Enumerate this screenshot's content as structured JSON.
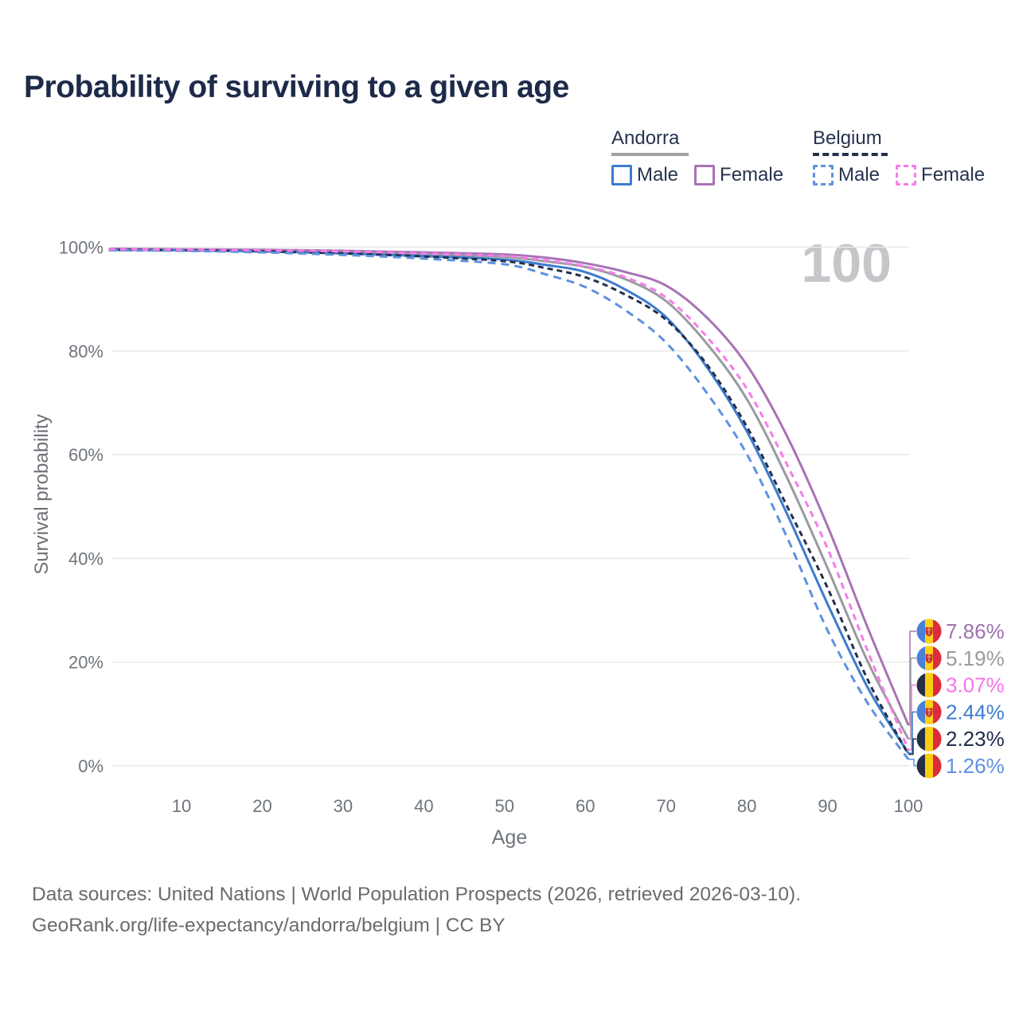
{
  "title": "Probability of surviving to a given age",
  "watermark": "100",
  "legend": {
    "andorra": {
      "country": "Andorra",
      "line_style": "solid",
      "underline_color": "#9ea0a4",
      "male_label": "Male",
      "male_color": "#3d7bce",
      "female_label": "Female",
      "female_color": "#a873b5"
    },
    "belgium": {
      "country": "Belgium",
      "line_style": "dashed",
      "underline_color": "#22304b",
      "male_label": "Male",
      "male_color": "#5d92e0",
      "female_label": "Female",
      "female_color": "#f77ce8"
    }
  },
  "chart_data": {
    "type": "line",
    "title": "Probability of surviving to a given age",
    "xlabel": "Age",
    "ylabel": "Survival probability",
    "xlim": [
      1,
      100
    ],
    "ylim": [
      0,
      100
    ],
    "grid": true,
    "legend_position": "top-right",
    "x_ticks": [
      10,
      20,
      30,
      40,
      50,
      60,
      70,
      80,
      90,
      100
    ],
    "y_ticks": [
      {
        "value": 100,
        "label": "100%"
      },
      {
        "value": 80,
        "label": "80%"
      },
      {
        "value": 60,
        "label": "60%"
      },
      {
        "value": 40,
        "label": "40%"
      },
      {
        "value": 20,
        "label": "20%"
      },
      {
        "value": 0,
        "label": "0%"
      }
    ],
    "x": [
      1,
      10,
      20,
      30,
      40,
      50,
      55,
      60,
      65,
      70,
      75,
      80,
      85,
      90,
      95,
      100
    ],
    "series": [
      {
        "id": "andorra-all",
        "name": "Andorra",
        "country": "Andorra",
        "sex": "all",
        "color": "#9a9ba0",
        "line_style": "solid",
        "flag": "andorra",
        "label_row": 1,
        "end_label": "5.19%",
        "end_label_color": "#9b9b9b",
        "values": [
          99.6,
          99.5,
          99.4,
          99.1,
          98.7,
          98.1,
          97.3,
          96.2,
          93.8,
          89.6,
          81.5,
          70.7,
          55.5,
          38.1,
          20.0,
          5.19
        ]
      },
      {
        "id": "andorra-female",
        "name": "Andorra Female",
        "country": "Andorra",
        "sex": "female",
        "color": "#a873b5",
        "line_style": "solid",
        "flag": "andorra",
        "label_row": 0,
        "end_label": "7.86%",
        "end_label_color": "#a06fb0",
        "values": [
          99.7,
          99.6,
          99.5,
          99.3,
          99.0,
          98.6,
          98.0,
          96.9,
          95.2,
          92.6,
          86.5,
          77.3,
          63.5,
          46.2,
          26.5,
          7.86
        ]
      },
      {
        "id": "andorra-male",
        "name": "Andorra Male",
        "country": "Andorra",
        "sex": "male",
        "color": "#3d7bce",
        "line_style": "solid",
        "flag": "andorra",
        "label_row": 3,
        "end_label": "2.44%",
        "end_label_color": "#3c7bd0",
        "values": [
          99.5,
          99.4,
          99.2,
          98.8,
          98.3,
          97.6,
          96.6,
          95.2,
          91.8,
          86.5,
          77.0,
          64.5,
          48.5,
          31.2,
          15.0,
          2.44
        ]
      },
      {
        "id": "belgium-all",
        "name": "Belgium",
        "country": "Belgium",
        "sex": "all",
        "color": "#22304b",
        "line_style": "dashed",
        "dash_pattern": "7 5",
        "flag": "belgium",
        "label_row": 4,
        "end_label": "2.23%",
        "end_label_color": "#202d4a",
        "values": [
          99.5,
          99.4,
          99.2,
          98.8,
          98.2,
          97.3,
          96.0,
          94.2,
          90.8,
          86.0,
          77.5,
          65.4,
          50.0,
          34.3,
          16.5,
          2.23
        ]
      },
      {
        "id": "belgium-male",
        "name": "Belgium Male",
        "country": "Belgium",
        "sex": "male",
        "color": "#5d92e0",
        "line_style": "dashed",
        "dash_pattern": "10 7",
        "flag": "belgium",
        "label_row": 5,
        "end_label": "1.26%",
        "end_label_color": "#5d92e0",
        "values": [
          99.4,
          99.3,
          99.0,
          98.5,
          97.8,
          96.7,
          94.8,
          92.3,
          87.8,
          81.6,
          72.0,
          60.1,
          44.0,
          26.1,
          12.0,
          1.26
        ]
      },
      {
        "id": "belgium-female",
        "name": "Belgium Female",
        "country": "Belgium",
        "sex": "female",
        "color": "#f77ce8",
        "line_style": "dashed",
        "dash_pattern": "8 6",
        "flag": "belgium",
        "label_row": 2,
        "end_label": "3.07%",
        "end_label_color": "#f673e8",
        "values": [
          99.6,
          99.5,
          99.4,
          99.2,
          98.8,
          98.3,
          97.5,
          96.3,
          94.2,
          90.3,
          82.8,
          72.7,
          58.0,
          41.9,
          22.0,
          3.07
        ]
      }
    ]
  },
  "footer": {
    "line1": "Data sources: United Nations | World Population Prospects (2026, retrieved 2026-03-10).",
    "line2": "GeoRank.org/life-expectancy/andorra/belgium | CC BY"
  }
}
